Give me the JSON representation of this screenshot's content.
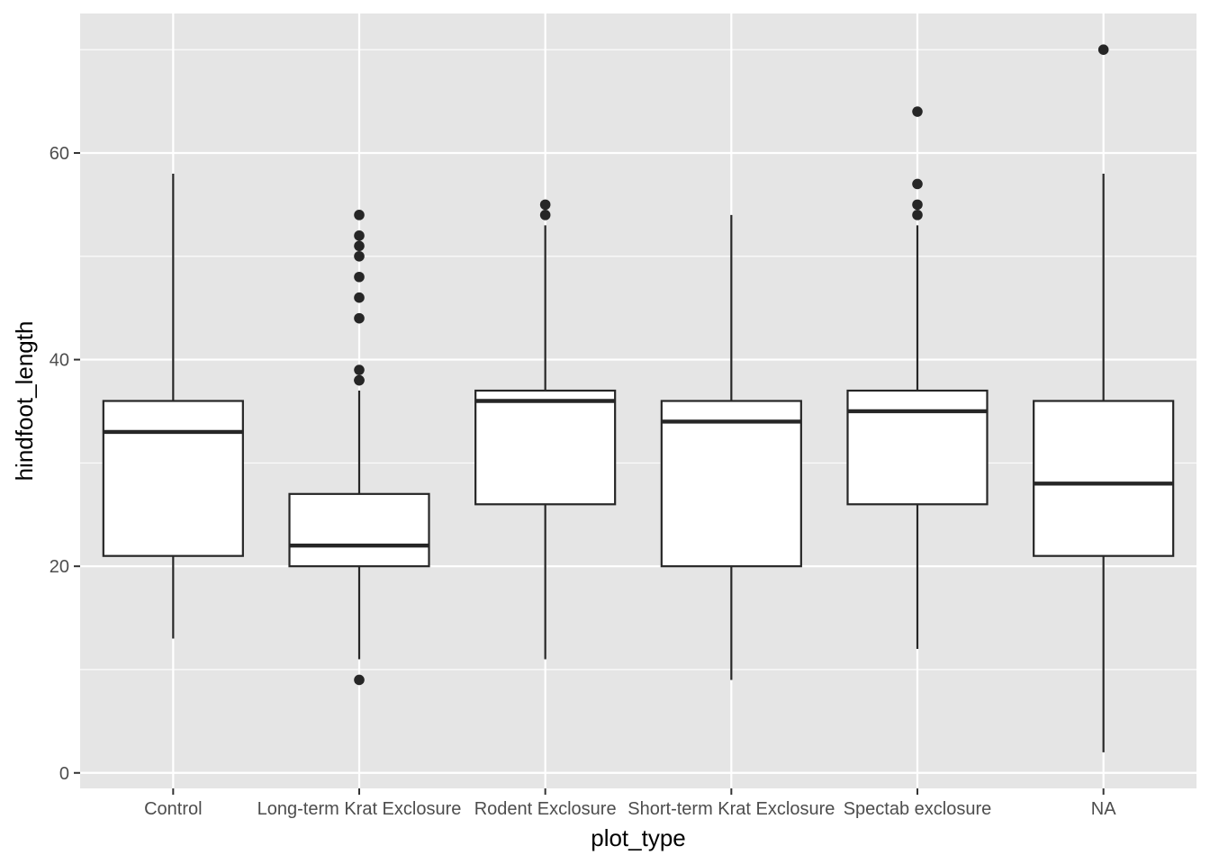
{
  "chart_data": {
    "type": "boxplot",
    "xlabel": "plot_type",
    "ylabel": "hindfoot_length",
    "categories": [
      "Control",
      "Long-term Krat Exclosure",
      "Rodent Exclosure",
      "Short-term Krat Exclosure",
      "Spectab exclosure",
      "NA"
    ],
    "ylim": [
      -1.5,
      73.5
    ],
    "yticks": [
      0,
      20,
      40,
      60
    ],
    "ytick_labels": [
      "0",
      "20",
      "40",
      "60"
    ],
    "grid": true,
    "legend": "none",
    "colors": {
      "panel": "#E5E5E5",
      "grid": "#FFFFFF",
      "box_fill": "#FFFFFF",
      "box_line": "#262626",
      "text": "#4D4D4D"
    },
    "boxes": [
      {
        "category": "Control",
        "whisker_low": 13,
        "q1": 21,
        "median": 33,
        "q3": 36,
        "whisker_high": 58,
        "outliers": []
      },
      {
        "category": "Long-term Krat Exclosure",
        "whisker_low": 11,
        "q1": 20,
        "median": 22,
        "q3": 27,
        "whisker_high": 37,
        "outliers": [
          9,
          38,
          38,
          39,
          44,
          46,
          48,
          50,
          51,
          52,
          54
        ]
      },
      {
        "category": "Rodent Exclosure",
        "whisker_low": 11,
        "q1": 26,
        "median": 36,
        "q3": 37,
        "whisker_high": 53,
        "outliers": [
          54,
          55
        ]
      },
      {
        "category": "Short-term Krat Exclosure",
        "whisker_low": 9,
        "q1": 20,
        "median": 34,
        "q3": 36,
        "whisker_high": 54,
        "outliers": []
      },
      {
        "category": "Spectab exclosure",
        "whisker_low": 12,
        "q1": 26,
        "median": 35,
        "q3": 37,
        "whisker_high": 53,
        "outliers": [
          54,
          55,
          57,
          64
        ]
      },
      {
        "category": "NA",
        "whisker_low": 2,
        "q1": 21,
        "median": 28,
        "q3": 36,
        "whisker_high": 58,
        "outliers": [
          70
        ]
      }
    ]
  }
}
